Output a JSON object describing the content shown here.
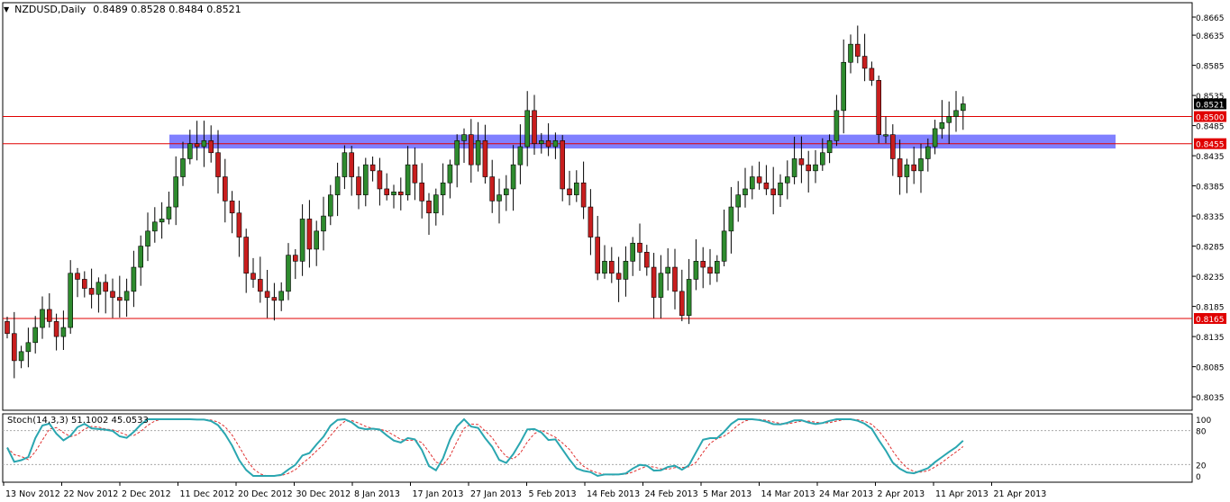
{
  "header": {
    "menu_icon": "triangle-down-icon",
    "symbol": "NZDUSD,Daily",
    "ohlc": "0.8489 0.8528 0.8484 0.8521"
  },
  "stoch": {
    "label": "Stoch(14,3,3) 51.1002 45.0533",
    "levels": [
      "100",
      "80",
      "20",
      "0"
    ]
  },
  "colors": {
    "bull": "#2e8b2e",
    "bear": "#c81e1e",
    "wick": "#000000",
    "zone": "#6a6aff",
    "hline": "#e00000",
    "stoch_main": "#2aa6b0",
    "stoch_signal": "#e03030",
    "last_price_bg": "#000000",
    "line_label_bg": "#e00000"
  },
  "chart_data": {
    "type": "candlestick",
    "y_ticks": [
      "0.8665",
      "0.8635",
      "0.8585",
      "0.8535",
      "0.8485",
      "0.8435",
      "0.8385",
      "0.8335",
      "0.8285",
      "0.8235",
      "0.8185",
      "0.8135",
      "0.8085",
      "0.8035"
    ],
    "x_labels": [
      "13 Nov 2012",
      "22 Nov 2012",
      "2 Dec 2012",
      "11 Dec 2012",
      "20 Dec 2012",
      "30 Dec 2012",
      "8 Jan 2013",
      "17 Jan 2013",
      "27 Jan 2013",
      "5 Feb 2013",
      "14 Feb 2013",
      "24 Feb 2013",
      "5 Mar 2013",
      "14 Mar 2013",
      "24 Mar 2013",
      "2 Apr 2013",
      "11 Apr 2013",
      "21 Apr 2013"
    ],
    "last_price": "0.8521",
    "horizontal_lines": [
      "0.8500",
      "0.8455",
      "0.8165"
    ],
    "support_zone": [
      0.845,
      0.847
    ],
    "closes": [
      0.814,
      0.8095,
      0.811,
      0.8125,
      0.815,
      0.818,
      0.816,
      0.8135,
      0.815,
      0.824,
      0.823,
      0.8215,
      0.8205,
      0.8225,
      0.821,
      0.82,
      0.8195,
      0.821,
      0.825,
      0.8285,
      0.831,
      0.8325,
      0.833,
      0.835,
      0.84,
      0.843,
      0.8455,
      0.845,
      0.846,
      0.844,
      0.84,
      0.836,
      0.834,
      0.83,
      0.824,
      0.823,
      0.821,
      0.82,
      0.8195,
      0.821,
      0.827,
      0.826,
      0.833,
      0.828,
      0.831,
      0.8335,
      0.837,
      0.84,
      0.844,
      0.84,
      0.837,
      0.842,
      0.841,
      0.838,
      0.837,
      0.8375,
      0.837,
      0.842,
      0.839,
      0.836,
      0.834,
      0.837,
      0.839,
      0.842,
      0.846,
      0.847,
      0.842,
      0.846,
      0.84,
      0.836,
      0.837,
      0.838,
      0.842,
      0.845,
      0.851,
      0.8455,
      0.846,
      0.845,
      0.846,
      0.838,
      0.837,
      0.839,
      0.835,
      0.83,
      0.824,
      0.826,
      0.824,
      0.823,
      0.826,
      0.829,
      0.8275,
      0.825,
      0.82,
      0.824,
      0.825,
      0.821,
      0.817,
      0.823,
      0.826,
      0.825,
      0.824,
      0.826,
      0.831,
      0.835,
      0.837,
      0.838,
      0.84,
      0.839,
      0.838,
      0.837,
      0.839,
      0.84,
      0.843,
      0.842,
      0.841,
      0.842,
      0.844,
      0.846,
      0.851,
      0.859,
      0.862,
      0.86,
      0.858,
      0.856,
      0.847,
      0.847,
      0.843,
      0.84,
      0.842,
      0.841,
      0.843,
      0.845,
      0.848,
      0.849,
      0.85,
      0.851,
      0.8521
    ]
  }
}
